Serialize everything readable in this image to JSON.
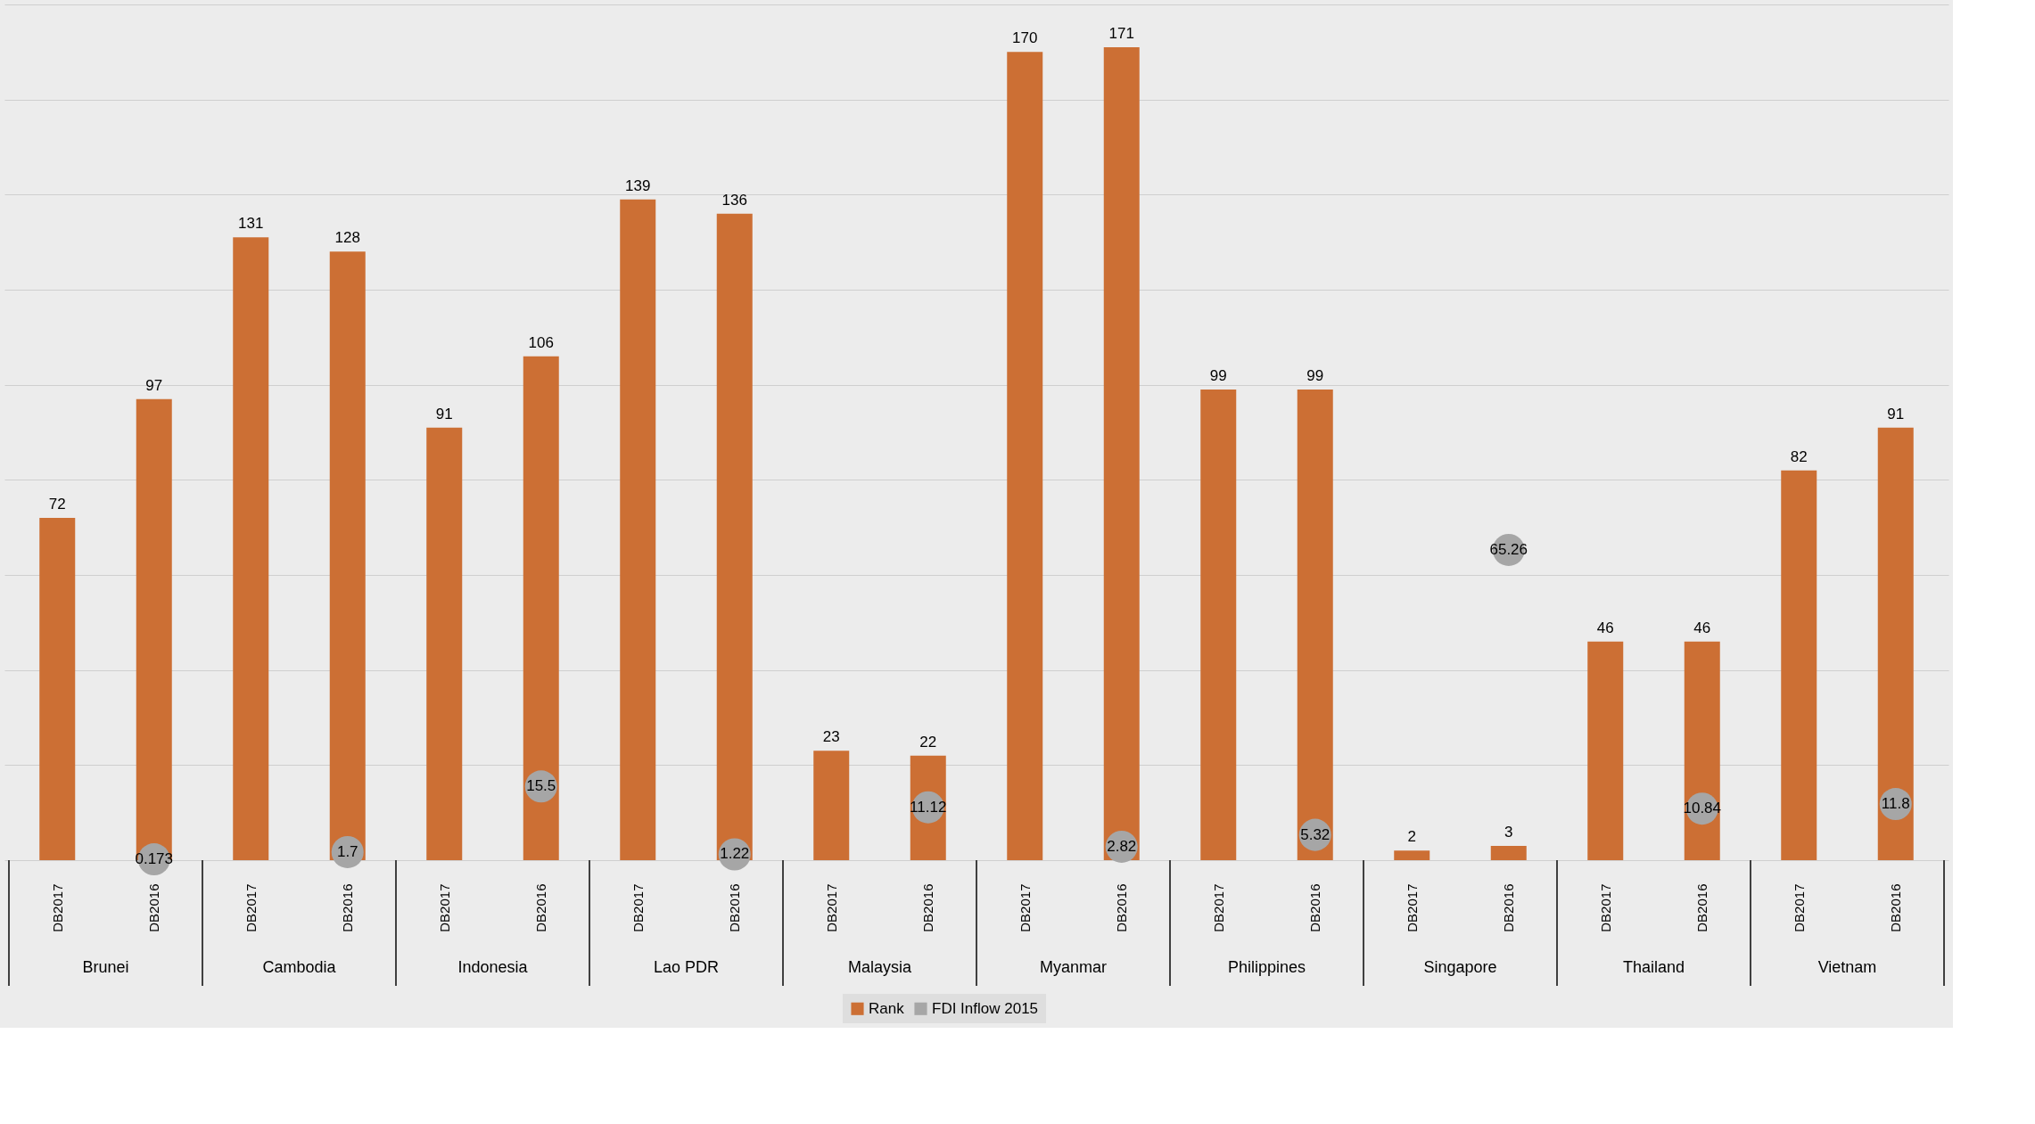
{
  "chart_data": {
    "type": "bar",
    "categories": [
      "DB2017",
      "DB2016",
      "DB2017",
      "DB2016",
      "DB2017",
      "DB2016",
      "DB2017",
      "DB2016",
      "DB2017",
      "DB2016",
      "DB2017",
      "DB2016",
      "DB2017",
      "DB2016",
      "DB2017",
      "DB2016",
      "DB2017",
      "DB2016",
      "DB2017",
      "DB2016"
    ],
    "series": [
      {
        "name": "Rank",
        "type": "bar",
        "color": "#cc6f34",
        "values": [
          72,
          97,
          131,
          128,
          91,
          106,
          139,
          136,
          23,
          22,
          170,
          171,
          99,
          99,
          2,
          3,
          46,
          46,
          82,
          91
        ]
      },
      {
        "name": "FDI Inflow 2015",
        "type": "scatter",
        "color": "#a6a6a6",
        "values": [
          null,
          0.173,
          null,
          1.7,
          null,
          15.5,
          null,
          1.22,
          null,
          11.12,
          null,
          2.82,
          null,
          5.32,
          null,
          65.26,
          null,
          10.84,
          null,
          11.8
        ]
      }
    ],
    "annotations": [
      "Brunei",
      "Cambodia",
      "Indonesia",
      "Lao PDR",
      "Malaysia",
      "Myanmar",
      "Philippines",
      "Singapore",
      "Thailand",
      "Vietnam"
    ],
    "ylim": [
      0,
      180
    ],
    "yticks": [
      {
        "value": 0,
        "label": null
      },
      {
        "value": 20,
        "label": null
      },
      {
        "value": 40,
        "label": null
      },
      {
        "value": 60,
        "label": null
      },
      {
        "value": 80,
        "label": null
      },
      {
        "value": 100,
        "label": null
      },
      {
        "value": 120,
        "label": null
      },
      {
        "value": 140,
        "label": null
      },
      {
        "value": 160,
        "label": null
      },
      {
        "value": 180,
        "label": null
      }
    ],
    "tick_labels": "x",
    "grid": "y",
    "legend": "bottom",
    "marker": "circle",
    "data_labels": true
  }
}
